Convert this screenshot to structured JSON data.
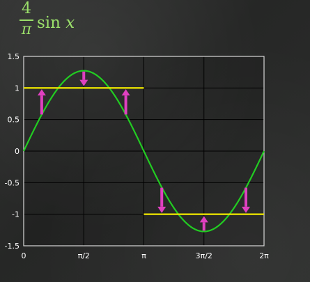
{
  "formula": {
    "numerator": "4",
    "denominator": "π",
    "function": "sin",
    "variable": "x"
  },
  "colors": {
    "formula": "#9be06a",
    "sine_curve": "#22cc22",
    "square_wave": "#e8e000",
    "arrows": "#e040c0",
    "grid": "#000000",
    "text": "#ffffff"
  },
  "chart_data": {
    "type": "line",
    "title": "",
    "xlabel": "",
    "ylabel": "",
    "xlim": [
      0,
      6.2832
    ],
    "ylim": [
      -1.5,
      1.5
    ],
    "grid": true,
    "x_ticks": [
      {
        "value": 0,
        "label": "0"
      },
      {
        "value": 1.5708,
        "label": "π/2"
      },
      {
        "value": 3.1416,
        "label": "π"
      },
      {
        "value": 4.7124,
        "label": "3π/2"
      },
      {
        "value": 6.2832,
        "label": "2π"
      }
    ],
    "y_ticks": [
      {
        "value": 1.5,
        "label": "1.5"
      },
      {
        "value": 1,
        "label": "1"
      },
      {
        "value": 0.5,
        "label": "0.5"
      },
      {
        "value": 0,
        "label": "0"
      },
      {
        "value": -0.5,
        "label": "-0.5"
      },
      {
        "value": -1,
        "label": "-1"
      },
      {
        "value": -1.5,
        "label": "-1.5"
      }
    ],
    "series": [
      {
        "kind": "sine",
        "amplitude": 1.2732,
        "x_start": 0,
        "x_end": 6.2832
      },
      {
        "kind": "segment",
        "x": [
          0,
          3.1416
        ],
        "y": [
          1,
          1
        ]
      },
      {
        "kind": "segment",
        "x": [
          3.1416,
          6.2832
        ],
        "y": [
          -1,
          -1
        ]
      }
    ],
    "arrows": [
      {
        "x": 0.471,
        "from": 0.58,
        "to": 0.98
      },
      {
        "x": 1.5708,
        "from": 1.26,
        "to": 1.03
      },
      {
        "x": 2.67,
        "from": 0.58,
        "to": 0.98
      },
      {
        "x": 3.61,
        "from": -0.58,
        "to": -0.98
      },
      {
        "x": 4.7124,
        "from": -1.26,
        "to": -1.03
      },
      {
        "x": 5.81,
        "from": -0.58,
        "to": -0.98
      }
    ]
  }
}
